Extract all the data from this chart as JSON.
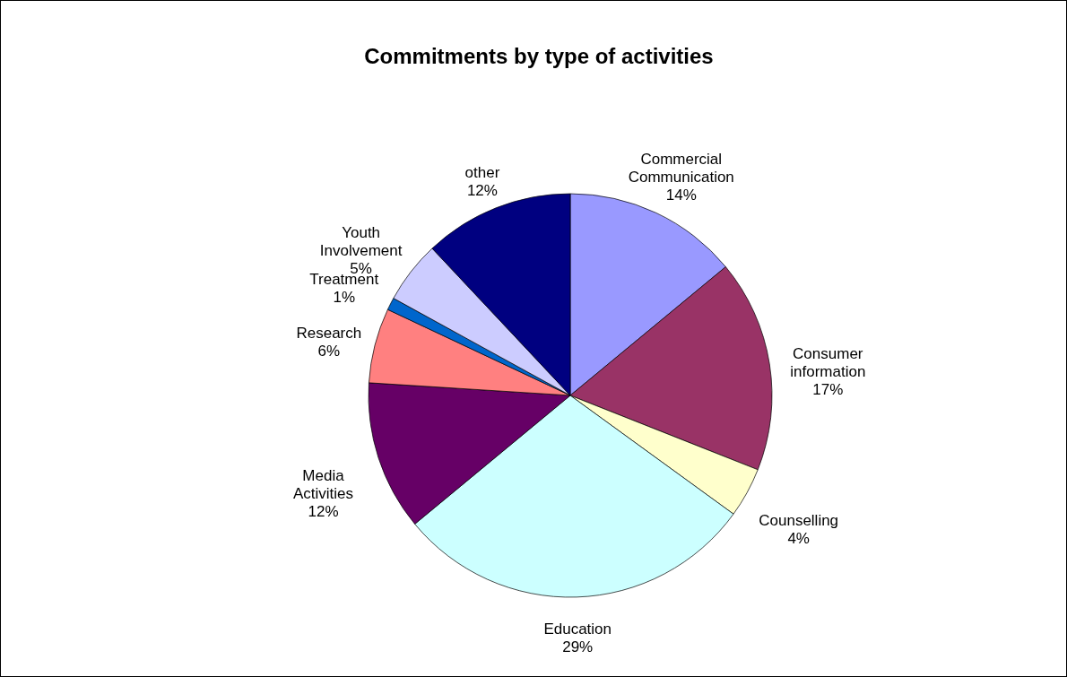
{
  "chart_data": {
    "type": "pie",
    "title": "Commitments by type of activities",
    "categories": [
      "Commercial Communication",
      "Consumer information",
      "Counselling",
      "Education",
      "Media Activities",
      "Research",
      "Treatment",
      "Youth Involvement",
      "other"
    ],
    "values": [
      14,
      17,
      4,
      29,
      12,
      6,
      1,
      5,
      12
    ],
    "value_labels": [
      "14%",
      "17%",
      "4%",
      "29%",
      "12%",
      "6%",
      "1%",
      "5%",
      "12%"
    ],
    "colors": [
      "#9999ff",
      "#993366",
      "#ffffcc",
      "#ccffff",
      "#660066",
      "#ff8080",
      "#0066cc",
      "#ccccff",
      "#000080"
    ],
    "legend": false
  }
}
